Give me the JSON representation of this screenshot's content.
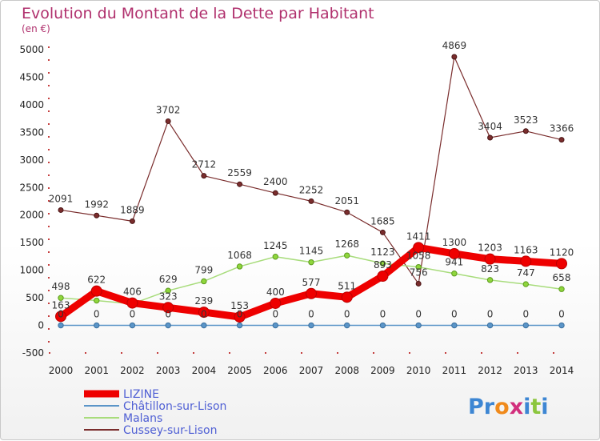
{
  "header": {
    "title": "Evolution du Montant de la Dette par Habitant",
    "subtitle": "(en €)"
  },
  "logo": {
    "text": "Proxiti",
    "letter_colors": [
      "#3d86d3",
      "#3d86d3",
      "#f08a1c",
      "#d22f7d",
      "#3d86d3",
      "#8cc63e",
      "#3d86d3"
    ]
  },
  "chart_data": {
    "type": "line",
    "title": "Evolution du Montant de la Dette par Habitant",
    "subtitle": "(en €)",
    "xlabel": "",
    "ylabel": "",
    "x": [
      "2000",
      "2001",
      "2002",
      "2003",
      "2004",
      "2005",
      "2006",
      "2007",
      "2008",
      "2009",
      "2010",
      "2011",
      "2012",
      "2013",
      "2014"
    ],
    "ylim": [
      -500,
      5000
    ],
    "yticks": [
      -500,
      0,
      500,
      1000,
      1500,
      2000,
      2500,
      3000,
      3500,
      4000,
      4500,
      5000
    ],
    "grid": false,
    "legend_position": "bottom-left",
    "series": [
      {
        "name": "LIZINE",
        "color": "#ee0000",
        "values": [
          163,
          622,
          406,
          323,
          239,
          153,
          400,
          577,
          511,
          893,
          1411,
          1300,
          1203,
          1163,
          1120
        ],
        "labels": [
          "163",
          "622",
          "406",
          "323",
          "239",
          "153",
          "400",
          "577",
          "511",
          "893",
          "1411",
          "1300",
          "1203",
          "1163",
          "1120"
        ]
      },
      {
        "name": "Châtillon-sur-Lison",
        "color": "#5b95c8",
        "values": [
          0,
          0,
          0,
          0,
          0,
          0,
          0,
          0,
          0,
          0,
          0,
          0,
          0,
          0,
          0
        ],
        "labels": [
          "0",
          "0",
          "0",
          "0",
          "0",
          "0",
          "0",
          "0",
          "0",
          "0",
          "0",
          "0",
          "0",
          "0",
          "0"
        ]
      },
      {
        "name": "Malans",
        "color": "#a8dc7c",
        "values": [
          498,
          450,
          391,
          629,
          799,
          1068,
          1245,
          1145,
          1268,
          1123,
          1058,
          941,
          823,
          747,
          658
        ],
        "labels": [
          "498",
          "",
          "",
          "629",
          "799",
          "1068",
          "1245",
          "1145",
          "1268",
          "1123",
          "1058",
          "941",
          "823",
          "747",
          "658"
        ]
      },
      {
        "name": "Cussey-sur-Lison",
        "color": "#7a2d2d",
        "values": [
          2091,
          1992,
          1889,
          3702,
          2712,
          2559,
          2400,
          2252,
          2051,
          1685,
          756,
          4869,
          3404,
          3523,
          3366
        ],
        "labels": [
          "2091",
          "1992",
          "1889",
          "3702",
          "2712",
          "2559",
          "2400",
          "2252",
          "2051",
          "1685",
          "756",
          "4869",
          "3404",
          "3523",
          "3366"
        ]
      }
    ]
  }
}
